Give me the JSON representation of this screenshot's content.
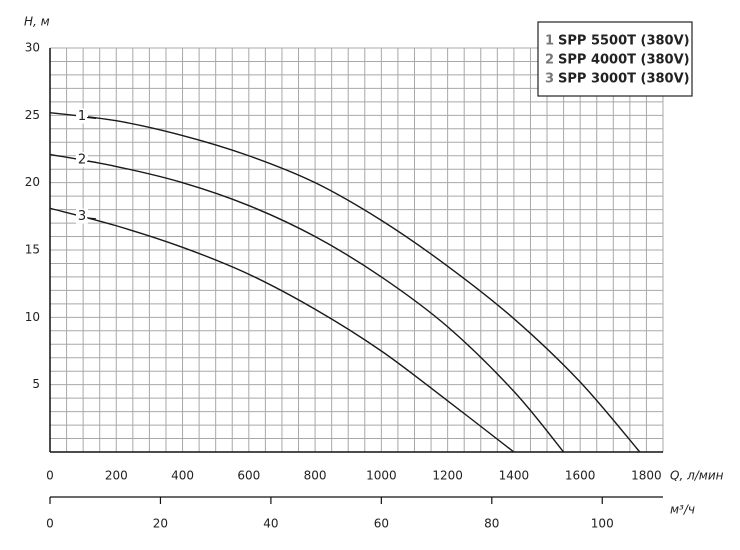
{
  "chart_data": {
    "type": "line",
    "y_label": "H, м",
    "x_label": "Q, л/мин",
    "x2_label": "м³/ч",
    "xlim": [
      0,
      1850
    ],
    "xticks": [
      0,
      200,
      400,
      600,
      800,
      1000,
      1200,
      1400,
      1600,
      1800
    ],
    "x2lim": [
      0,
      111
    ],
    "x2ticks": [
      0,
      20,
      40,
      60,
      80,
      100
    ],
    "ylim": [
      0,
      30
    ],
    "yticks": [
      5,
      10,
      15,
      20,
      25,
      30
    ],
    "grid": {
      "x_step": 50,
      "y_step": 1,
      "color": "#a8a8a8"
    },
    "legend": "top-right",
    "series": [
      {
        "label": "1",
        "name": "SPP 5500T (380V)",
        "color": "#1a1a1a",
        "x": [
          0,
          200,
          400,
          600,
          800,
          1000,
          1200,
          1400,
          1600,
          1780
        ],
        "values": [
          25.2,
          24.6,
          23.5,
          22,
          20,
          17.2,
          13.8,
          9.9,
          5.2,
          0
        ]
      },
      {
        "label": "2",
        "name": "SPP 4000T (380V)",
        "color": "#1a1a1a",
        "x": [
          0,
          200,
          400,
          600,
          800,
          1000,
          1200,
          1400,
          1550
        ],
        "values": [
          22.1,
          21.2,
          20,
          18.3,
          16,
          13,
          9.3,
          4.5,
          0
        ]
      },
      {
        "label": "3",
        "name": "SPP 3000T (380V)",
        "color": "#1a1a1a",
        "x": [
          0,
          200,
          400,
          600,
          800,
          1000,
          1200,
          1400
        ],
        "values": [
          18.1,
          16.8,
          15.2,
          13.2,
          10.6,
          7.5,
          3.8,
          0
        ]
      }
    ]
  }
}
